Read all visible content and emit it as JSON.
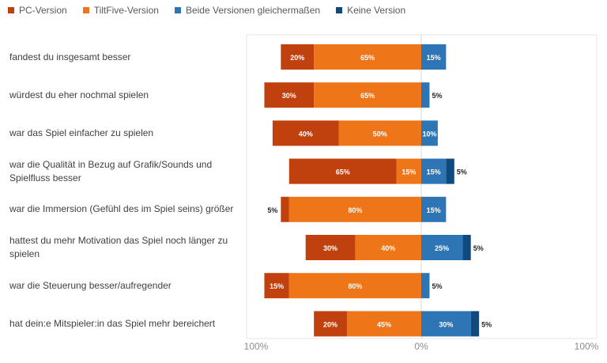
{
  "chart_data": {
    "type": "bar",
    "subtype": "diverging-stacked-horizontal",
    "title": "",
    "xlabel": "",
    "ylabel": "",
    "xlim": [
      -100,
      100
    ],
    "x_tick_labels": [
      "100%",
      "0%",
      "100%"
    ],
    "legend_position": "top-left",
    "grid": false,
    "categories": [
      "fandest du insgesamt besser",
      "würdest du eher nochmal spielen",
      "war das Spiel einfacher zu spielen",
      "war die Qualität in Bezug auf Grafik/Sounds und Spielfluss besser",
      "war die Immersion (Gefühl des im Spiel seins) größer",
      "hattest du mehr Motivation das Spiel noch länger zu spielen",
      "war die Steuerung besser/aufregender",
      "hat dein:e Mitspieler:in das Spiel mehr bereichert"
    ],
    "series": [
      {
        "name": "PC-Version",
        "side": "left",
        "color": "#C0410E",
        "values": [
          20,
          30,
          40,
          65,
          5,
          30,
          15,
          20
        ]
      },
      {
        "name": "TiltFive-Version",
        "side": "left",
        "color": "#EE7518",
        "values": [
          65,
          65,
          50,
          15,
          80,
          40,
          80,
          45
        ]
      },
      {
        "name": "Beide Versionen gleichermaßen",
        "side": "right",
        "color": "#2E75B6",
        "values": [
          15,
          5,
          10,
          15,
          15,
          25,
          5,
          30
        ]
      },
      {
        "name": "Keine Version",
        "side": "right",
        "color": "#0E4A7E",
        "values": [
          0,
          0,
          0,
          5,
          0,
          5,
          0,
          5
        ]
      }
    ],
    "value_suffix": "%"
  }
}
